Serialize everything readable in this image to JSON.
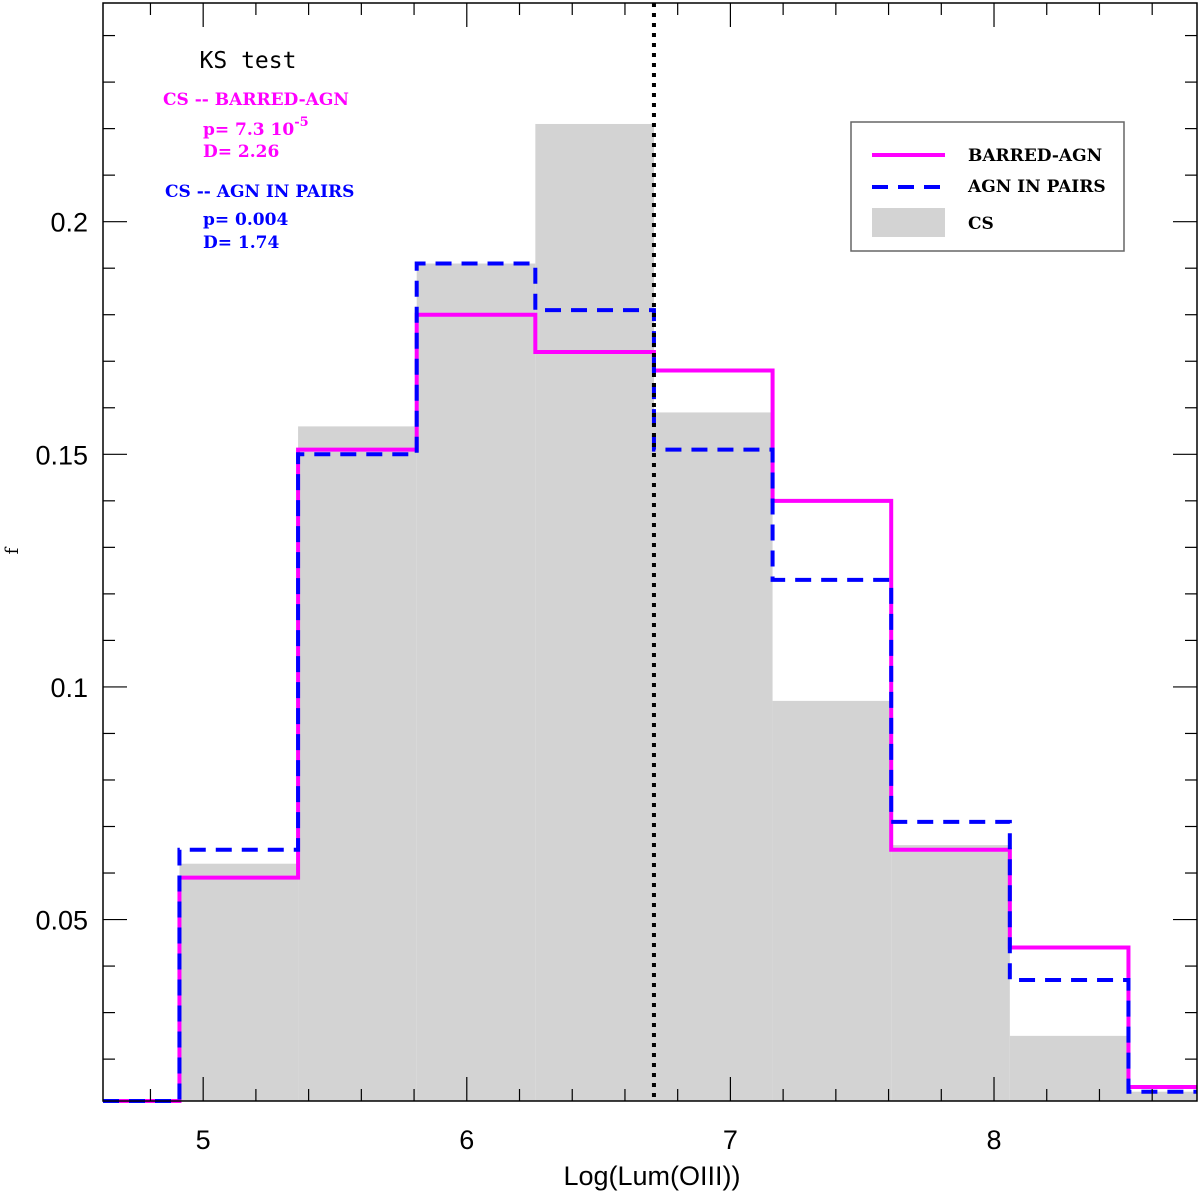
{
  "chart_data": {
    "type": "histogram",
    "title": "",
    "xlabel": "Log(Lum(OIII))",
    "ylabel": "f",
    "xlim": [
      4.62,
      8.77
    ],
    "ylim": [
      0.011,
      0.247
    ],
    "xticks": [
      5,
      6,
      7,
      8
    ],
    "xtick_labels": [
      "5",
      "6",
      "7",
      "8"
    ],
    "yticks": [
      0.05,
      0.1,
      0.15,
      0.2
    ],
    "ytick_labels": [
      "0.05",
      "0.1",
      "0.15",
      "0.2"
    ],
    "bin_edges": [
      4.62,
      4.91,
      5.36,
      5.81,
      6.26,
      6.71,
      7.16,
      7.61,
      8.06,
      8.51,
      8.77
    ],
    "series": [
      {
        "name": "CS",
        "style": "filled",
        "color": "#d3d3d3",
        "values": [
          0,
          0.062,
          0.156,
          0.191,
          0.221,
          0.159,
          0.097,
          0.066,
          0.025,
          0.013
        ]
      },
      {
        "name": "BARRED-AGN",
        "style": "solid",
        "color": "#ff00ff",
        "values": [
          0.011,
          0.059,
          0.151,
          0.18,
          0.172,
          0.168,
          0.14,
          0.065,
          0.044,
          0.014
        ]
      },
      {
        "name": "AGN IN PAIRS",
        "style": "dashed",
        "color": "#0000ff",
        "values": [
          0.011,
          0.065,
          0.15,
          0.191,
          0.181,
          0.151,
          0.123,
          0.071,
          0.037,
          0.013
        ]
      }
    ],
    "vline": {
      "x": 6.71,
      "style": "dotted",
      "color": "#000000"
    },
    "legend": {
      "position": "top-right",
      "entries": [
        "BARRED-AGN",
        "AGN IN PAIRS",
        "CS"
      ]
    },
    "annotations": {
      "title": "KS test",
      "barred": {
        "color": "#ff00ff",
        "header": "CS -- BARRED-AGN",
        "p_prefix": "p= 7.3 10",
        "p_exponent": "-5",
        "d_line": "D= 2.26"
      },
      "pairs": {
        "color": "#0000ff",
        "header": "CS -- AGN IN PAIRS",
        "p_line": "p= 0.004",
        "d_line": "D= 1.74"
      }
    }
  }
}
